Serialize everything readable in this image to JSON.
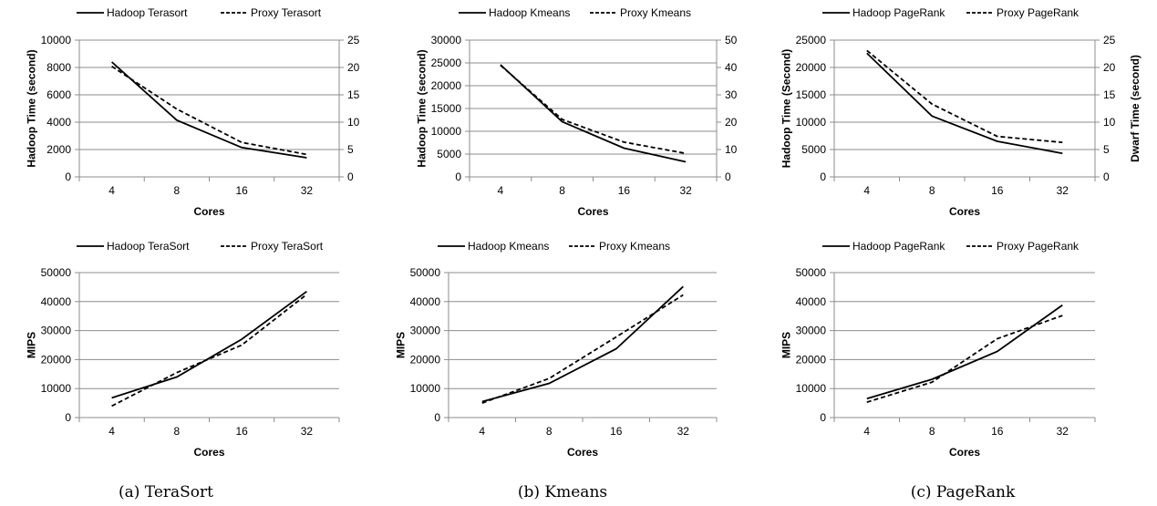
{
  "chart_data": [
    {
      "type": "line",
      "categories": [
        "4",
        "8",
        "16",
        "32"
      ],
      "xlabel": "Cores",
      "ylabel": "Hadoop Time (second)",
      "y2label": "",
      "ylim": [
        0,
        10000
      ],
      "yticks": [
        "10000",
        "8000",
        "6000",
        "4000",
        "2000",
        "0"
      ],
      "y2lim": [
        0,
        25
      ],
      "y2ticks": [
        "25",
        "20",
        "15",
        "10",
        "5",
        "0"
      ],
      "series": [
        {
          "name": "Hadoop Terasort",
          "axis": "left",
          "style": "solid",
          "values": [
            8400,
            4150,
            2150,
            1400
          ]
        },
        {
          "name": "Proxy Terasort",
          "axis": "right",
          "style": "dashed",
          "values": [
            20.2,
            12.4,
            6.3,
            4.1
          ]
        }
      ]
    },
    {
      "type": "line",
      "categories": [
        "4",
        "8",
        "16",
        "32"
      ],
      "xlabel": "Cores",
      "ylabel": "Hadoop Time (second)",
      "y2label": "",
      "ylim": [
        0,
        30000
      ],
      "yticks": [
        "30000",
        "25000",
        "20000",
        "15000",
        "10000",
        "5000",
        "0"
      ],
      "y2lim": [
        0,
        50
      ],
      "y2ticks": [
        "50",
        "40",
        "30",
        "20",
        "10",
        "0"
      ],
      "series": [
        {
          "name": "Hadoop Kmeans",
          "axis": "left",
          "style": "solid",
          "values": [
            24600,
            12100,
            6300,
            3300
          ]
        },
        {
          "name": "Proxy Kmeans",
          "axis": "right",
          "style": "dashed",
          "values": [
            40.8,
            21.0,
            12.7,
            8.6
          ]
        }
      ]
    },
    {
      "type": "line",
      "categories": [
        "4",
        "8",
        "16",
        "32"
      ],
      "xlabel": "Cores",
      "ylabel": "Hadoop Time (Second)",
      "y2label": "Dwarf Time (second)",
      "ylim": [
        0,
        25000
      ],
      "yticks": [
        "25000",
        "20000",
        "15000",
        "10000",
        "5000",
        "0"
      ],
      "y2lim": [
        0,
        25
      ],
      "y2ticks": [
        "25",
        "20",
        "15",
        "10",
        "5",
        "0"
      ],
      "series": [
        {
          "name": "Hadoop PageRank",
          "axis": "left",
          "style": "solid",
          "values": [
            22600,
            11100,
            6500,
            4300
          ]
        },
        {
          "name": "Proxy PageRank",
          "axis": "right",
          "style": "dashed",
          "values": [
            23.1,
            13.3,
            7.4,
            6.3
          ]
        }
      ]
    },
    {
      "type": "line",
      "categories": [
        "4",
        "8",
        "16",
        "32"
      ],
      "xlabel": "Cores",
      "ylabel": "MIPS",
      "ylim": [
        0,
        50000
      ],
      "yticks": [
        "50000",
        "40000",
        "30000",
        "20000",
        "10000",
        "0"
      ],
      "series": [
        {
          "name": "Hadoop TeraSort",
          "style": "solid",
          "values": [
            6800,
            14000,
            27000,
            43500
          ]
        },
        {
          "name": "Proxy TeraSort",
          "style": "dashed",
          "values": [
            4000,
            15500,
            25000,
            42500
          ]
        }
      ]
    },
    {
      "type": "line",
      "categories": [
        "4",
        "8",
        "16",
        "32"
      ],
      "xlabel": "Cores",
      "ylabel": "MIPS",
      "ylim": [
        0,
        50000
      ],
      "yticks": [
        "50000",
        "40000",
        "30000",
        "20000",
        "10000",
        "0"
      ],
      "series": [
        {
          "name": "Hadoop Kmeans",
          "style": "solid",
          "values": [
            5500,
            11800,
            23700,
            45200
          ]
        },
        {
          "name": "Proxy Kmeans",
          "style": "dashed",
          "values": [
            5000,
            13500,
            27800,
            42300
          ]
        }
      ]
    },
    {
      "type": "line",
      "categories": [
        "4",
        "8",
        "16",
        "32"
      ],
      "xlabel": "Cores",
      "ylabel": "MIPS",
      "ylim": [
        0,
        50000
      ],
      "yticks": [
        "50000",
        "40000",
        "30000",
        "20000",
        "10000",
        "0"
      ],
      "series": [
        {
          "name": "Hadoop PageRank",
          "style": "solid",
          "values": [
            6500,
            13200,
            22800,
            38800
          ]
        },
        {
          "name": "Proxy PageRank",
          "style": "dashed",
          "values": [
            5300,
            12200,
            27200,
            35200
          ]
        }
      ]
    }
  ],
  "captions": [
    "(a) TeraSort",
    "(b) Kmeans",
    "(c) PageRank"
  ]
}
